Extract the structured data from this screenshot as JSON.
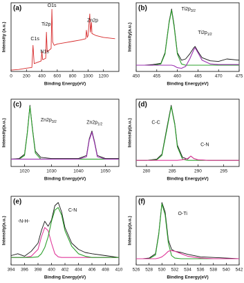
{
  "chart_data": [
    {
      "type": "line",
      "label": "(a)",
      "x_label": "Binding Energy(eV)",
      "y_label": "Intensity (a.u.)",
      "xlim": [
        0,
        1400
      ],
      "xticks": [
        0,
        200,
        400,
        600,
        800,
        1000,
        1200
      ],
      "ylim": [
        0,
        105
      ],
      "x": [
        0,
        100,
        200,
        270,
        285,
        300,
        390,
        400,
        410,
        450,
        459,
        470,
        520,
        530,
        540,
        560,
        600,
        700,
        800,
        900,
        970,
        978,
        990,
        1000,
        1022,
        1030,
        1045,
        1050,
        1100,
        1200,
        1350
      ],
      "series": [
        {
          "color": "#d62728",
          "values": [
            2,
            3,
            5,
            6,
            40,
            12,
            16,
            30,
            18,
            20,
            60,
            30,
            35,
            95,
            45,
            40,
            42,
            44,
            46,
            48,
            50,
            63,
            52,
            55,
            88,
            60,
            75,
            58,
            55,
            52,
            50
          ]
        }
      ],
      "annotations": [
        {
          "text": "C1s"
        },
        {
          "text": "N1s"
        },
        {
          "text": "Ti2p"
        },
        {
          "text": "O1s"
        },
        {
          "text": "Zn2p"
        }
      ]
    },
    {
      "type": "line",
      "label": "(b)",
      "x_label": "Binding Energy(eV)",
      "y_label": "Intensity(a.u.)",
      "xlim": [
        450,
        475
      ],
      "xticks": [
        450,
        455,
        460,
        465,
        470,
        475
      ],
      "ylim": [
        0,
        110
      ],
      "x": [
        450,
        452,
        454,
        456,
        457,
        458,
        458.6,
        459.2,
        460,
        461,
        462,
        463,
        464,
        464.3,
        465,
        466,
        468,
        470,
        472,
        475
      ],
      "series": [
        {
          "color": "#111111",
          "values": [
            10,
            10,
            11,
            13,
            30,
            80,
            100,
            75,
            30,
            18,
            20,
            28,
            38,
            40,
            32,
            22,
            17,
            16,
            20,
            18
          ]
        },
        {
          "color": "#2ca02c",
          "values": [
            10,
            10,
            10,
            12,
            28,
            78,
            98,
            72,
            28,
            12,
            10,
            10,
            10,
            10,
            10,
            10,
            10,
            10,
            10,
            10
          ]
        },
        {
          "color": "#9b30b0",
          "values": [
            10,
            10,
            10,
            10,
            10,
            10,
            10,
            9,
            6,
            5,
            8,
            20,
            35,
            38,
            30,
            18,
            12,
            11,
            11,
            11
          ]
        }
      ],
      "annotations": [
        {
          "text": "Ti2p",
          "sub": "3/2"
        },
        {
          "text": "Ti2p",
          "sub": "1/2"
        }
      ]
    },
    {
      "type": "line",
      "label": "(c)",
      "x_label": "Binding Energy(eV)",
      "y_label": "Intensity(a.u.)",
      "xlim": [
        1015,
        1055
      ],
      "xticks": [
        1020,
        1030,
        1040,
        1050
      ],
      "ylim": [
        0,
        110
      ],
      "x": [
        1015,
        1018,
        1020,
        1021,
        1022,
        1023,
        1024,
        1026,
        1030,
        1035,
        1040,
        1043,
        1044,
        1045,
        1046,
        1047,
        1050,
        1055
      ],
      "series": [
        {
          "color": "#111111",
          "values": [
            12,
            13,
            20,
            55,
            100,
            60,
            25,
            15,
            13,
            13,
            13,
            18,
            45,
            58,
            40,
            18,
            13,
            13
          ]
        },
        {
          "color": "#2ca02c",
          "values": [
            12,
            12,
            18,
            53,
            98,
            58,
            22,
            12,
            12,
            12,
            12,
            12,
            12,
            12,
            12,
            12,
            12,
            12
          ]
        },
        {
          "color": "#9b30b0",
          "values": [
            12,
            12,
            12,
            12,
            12,
            12,
            12,
            12,
            12,
            12,
            12,
            16,
            43,
            56,
            38,
            16,
            12,
            12
          ]
        }
      ],
      "annotations": [
        {
          "text": "Zn2p",
          "sub": "3/2"
        },
        {
          "text": "Zn2p",
          "sub": "1/2"
        }
      ]
    },
    {
      "type": "line",
      "label": "(d)",
      "x_label": "Binding Energy(eV)",
      "y_label": "Intensity(a.u.)",
      "xlim": [
        278,
        298
      ],
      "xticks": [
        280,
        285,
        290,
        295
      ],
      "ylim": [
        0,
        110
      ],
      "x": [
        278,
        280,
        282,
        283,
        284,
        284.8,
        285.5,
        286,
        287,
        288,
        288.6,
        289.2,
        290,
        292,
        295,
        298
      ],
      "series": [
        {
          "color": "#111111",
          "values": [
            10,
            10,
            12,
            20,
            65,
            100,
            70,
            35,
            15,
            12,
            17,
            13,
            11,
            10,
            10,
            10
          ]
        },
        {
          "color": "#2ca02c",
          "values": [
            10,
            10,
            11,
            18,
            62,
            98,
            68,
            32,
            12,
            10,
            10,
            10,
            10,
            10,
            10,
            10
          ]
        },
        {
          "color": "#e0389a",
          "values": [
            10,
            10,
            10,
            10,
            10,
            10,
            10,
            10,
            11,
            13,
            17,
            13,
            11,
            10,
            10,
            10
          ]
        }
      ],
      "annotations": [
        {
          "text": "C-C"
        },
        {
          "text": "C-N"
        }
      ]
    },
    {
      "type": "line",
      "label": "(e)",
      "x_label": "Binding Energy(eV)",
      "y_label": "Intensity(a.u.)",
      "xlim": [
        394,
        410
      ],
      "xticks": [
        394,
        396,
        398,
        400,
        402,
        404,
        406,
        408,
        410
      ],
      "ylim": [
        0,
        110
      ],
      "x": [
        394,
        395,
        396,
        397,
        398,
        398.5,
        399,
        399.5,
        400,
        400.5,
        401,
        401.5,
        402,
        403,
        404,
        405,
        406,
        408,
        410
      ],
      "series": [
        {
          "color": "#111111",
          "values": [
            15,
            18,
            14,
            22,
            35,
            55,
            70,
            62,
            72,
            95,
            100,
            85,
            60,
            35,
            25,
            20,
            18,
            15,
            12
          ]
        },
        {
          "color": "#e0389a",
          "values": [
            12,
            12,
            12,
            14,
            25,
            45,
            60,
            55,
            35,
            18,
            13,
            12,
            12,
            12,
            12,
            12,
            12,
            12,
            12
          ]
        },
        {
          "color": "#2ca02c",
          "values": [
            12,
            12,
            12,
            12,
            13,
            18,
            28,
            45,
            70,
            88,
            92,
            80,
            55,
            30,
            18,
            14,
            12,
            12,
            12
          ]
        }
      ],
      "annotations": [
        {
          "text": "-N-H-"
        },
        {
          "text": "C-N"
        }
      ]
    },
    {
      "type": "line",
      "label": "(f)",
      "x_label": "Binding Energy(eV)",
      "y_label": "Intensity(a.u.)",
      "xlim": [
        526,
        542
      ],
      "xticks": [
        526,
        528,
        530,
        532,
        534,
        536,
        538,
        540,
        542
      ],
      "ylim": [
        0,
        110
      ],
      "x": [
        526,
        527,
        528,
        529,
        529.5,
        530,
        530.5,
        531,
        531.5,
        532,
        533,
        534,
        536,
        538,
        540,
        542
      ],
      "series": [
        {
          "color": "#111111",
          "values": [
            10,
            10,
            11,
            18,
            50,
            100,
            85,
            40,
            25,
            22,
            20,
            17,
            13,
            12,
            11,
            10
          ]
        },
        {
          "color": "#2ca02c",
          "values": [
            10,
            10,
            10,
            16,
            48,
            98,
            80,
            35,
            15,
            11,
            10,
            10,
            10,
            10,
            10,
            10
          ]
        },
        {
          "color": "#e0389a",
          "values": [
            10,
            10,
            10,
            10,
            11,
            13,
            17,
            22,
            23,
            22,
            18,
            14,
            11,
            10,
            10,
            10
          ]
        }
      ],
      "annotations": [
        {
          "text": "O-Ti"
        }
      ]
    }
  ]
}
